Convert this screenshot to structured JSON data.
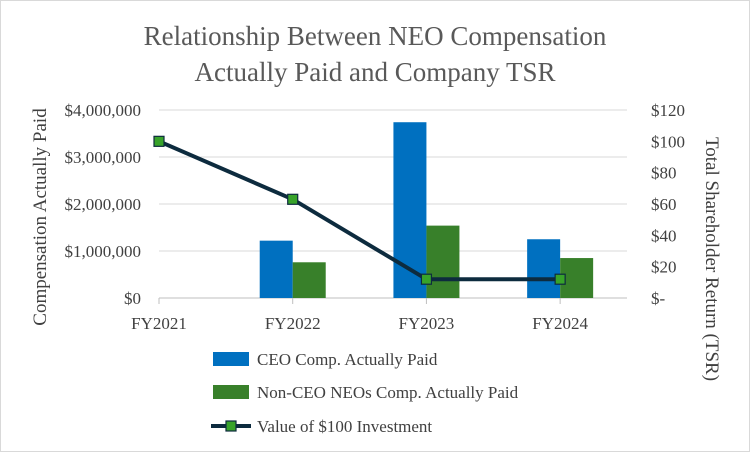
{
  "chart_data": {
    "type": "bar",
    "title": [
      "Relationship Between NEO Compensation",
      "Actually Paid and Company TSR"
    ],
    "ylabel": "Compensation Actually Paid",
    "y2label": "Total Shareholder Return (TSR)",
    "categories": [
      "FY2021",
      "FY2022",
      "FY2023",
      "FY2024"
    ],
    "ylim": [
      0,
      4000000
    ],
    "y2lim": [
      0,
      120
    ],
    "yticks": [
      "$0",
      "$1,000,000",
      "$2,000,000",
      "$3,000,000",
      "$4,000,000"
    ],
    "y2ticks": [
      "$-",
      "$20",
      "$40",
      "$60",
      "$80",
      "$100",
      "$120"
    ],
    "series": [
      {
        "name": "CEO Comp. Actually Paid",
        "kind": "bar",
        "axis": "left",
        "color": "#0070c0",
        "values": [
          0,
          1220000,
          3740000,
          1250000
        ]
      },
      {
        "name": "Non-CEO NEOs Comp. Actually Paid",
        "kind": "bar",
        "axis": "left",
        "color": "#38802a",
        "values": [
          0,
          760000,
          1540000,
          850000
        ]
      },
      {
        "name": "Value of $100 Investment",
        "kind": "line",
        "axis": "right",
        "color": "#0d2b3e",
        "marker_color": "#38a32a",
        "values": [
          100,
          63,
          12,
          12
        ]
      }
    ],
    "legend_position": "bottom",
    "grid": true
  }
}
